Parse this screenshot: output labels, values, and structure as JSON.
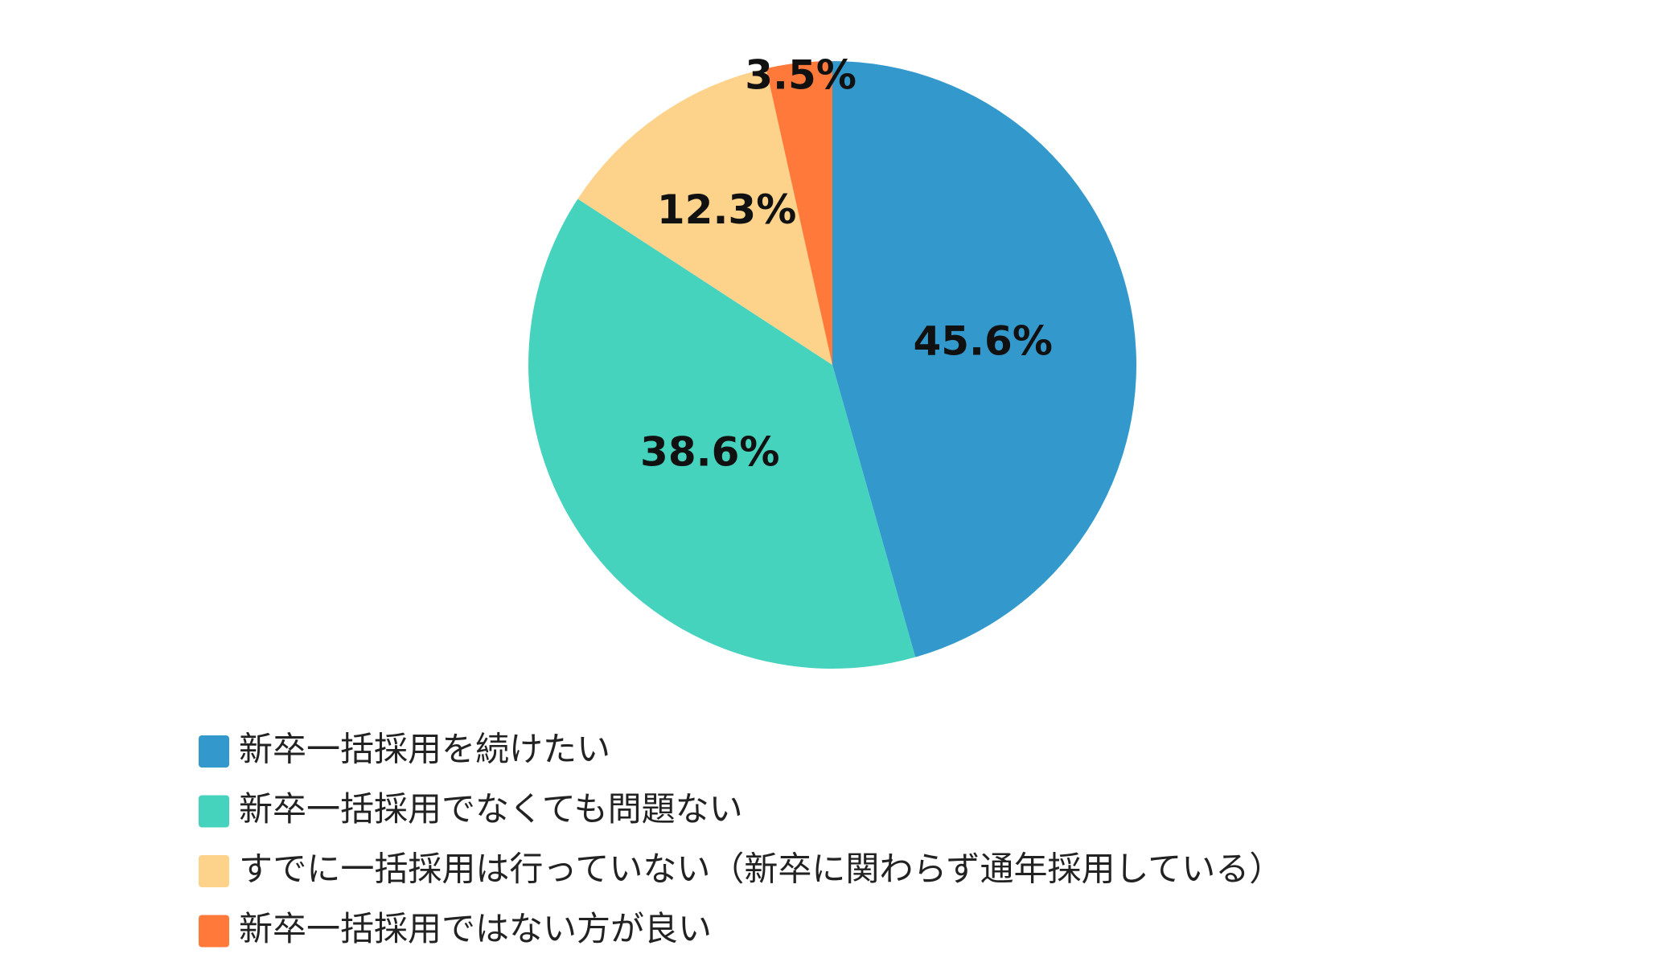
{
  "chart_data": {
    "type": "pie",
    "categories": [
      "新卒一括採用を続けたい",
      "新卒一括採用でなくても問題ない",
      "すでに一括採用は行っていない（新卒に関わらず通年採用している）",
      "新卒一括採用ではない方が良い"
    ],
    "values": [
      45.6,
      38.6,
      12.3,
      3.5
    ],
    "value_labels": [
      "45.6%",
      "38.6%",
      "12.3%",
      "3.5%"
    ],
    "colors": [
      "#3399cc",
      "#45d3be",
      "#fdd38b",
      "#ff7a3a"
    ]
  }
}
